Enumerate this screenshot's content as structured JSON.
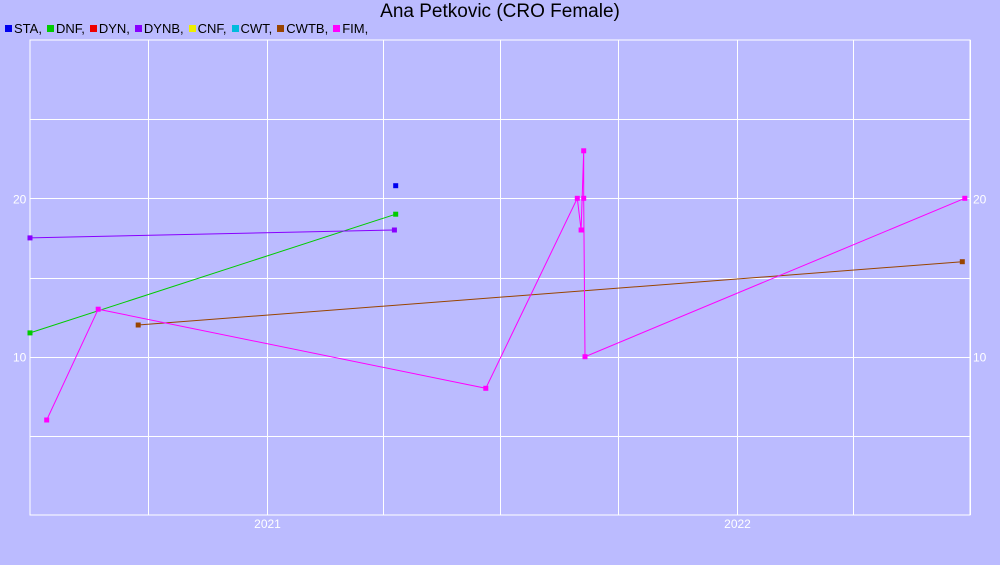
{
  "chart_data": {
    "type": "line",
    "title": "Ana Petkovic (CRO Female)",
    "xlabel": "",
    "ylabel": "",
    "x_type": "date",
    "xlim": [
      "2020-07-01",
      "2022-07-01"
    ],
    "ylim": [
      0,
      30
    ],
    "x_ticks": [
      {
        "date": "2021-01-01",
        "label": "2021"
      },
      {
        "date": "2022-01-01",
        "label": "2022"
      }
    ],
    "x_minor_gridlines": [
      "2020-10-01",
      "2021-04-01",
      "2021-07-01",
      "2021-10-01",
      "2022-04-01",
      "2022-07-01"
    ],
    "y_ticks": [
      10,
      20
    ],
    "y_gridlines": [
      5,
      10,
      15,
      20,
      25
    ],
    "grid": true,
    "legend_position": "top-left",
    "series": [
      {
        "name": "STA",
        "color": "#0000ee",
        "points": [
          {
            "x": "2021-04-11",
            "y": 20.8
          }
        ]
      },
      {
        "name": "DNF",
        "color": "#00cc00",
        "points": [
          {
            "x": "2020-07-01",
            "y": 11.5
          },
          {
            "x": "2021-04-11",
            "y": 19
          }
        ]
      },
      {
        "name": "DYN",
        "color": "#ee0000",
        "points": []
      },
      {
        "name": "DYNB",
        "color": "#8800ff",
        "points": [
          {
            "x": "2020-07-01",
            "y": 17.5
          },
          {
            "x": "2021-04-10",
            "y": 18
          }
        ]
      },
      {
        "name": "CNF",
        "color": "#eeee00",
        "points": []
      },
      {
        "name": "CWT",
        "color": "#00bbdd",
        "points": []
      },
      {
        "name": "CWTB",
        "color": "#994400",
        "points": [
          {
            "x": "2020-09-23",
            "y": 12
          },
          {
            "x": "2022-06-25",
            "y": 16
          }
        ]
      },
      {
        "name": "FIM",
        "color": "#ff00ff",
        "points": [
          {
            "x": "2020-07-14",
            "y": 6
          },
          {
            "x": "2020-08-23",
            "y": 13
          },
          {
            "x": "2021-06-20",
            "y": 8
          },
          {
            "x": "2021-08-30",
            "y": 20
          },
          {
            "x": "2021-09-02",
            "y": 18
          },
          {
            "x": "2021-09-04",
            "y": 23
          },
          {
            "x": "2021-09-04",
            "y": 20
          },
          {
            "x": "2021-09-05",
            "y": 10
          },
          {
            "x": "2022-06-27",
            "y": 20
          }
        ]
      }
    ]
  }
}
